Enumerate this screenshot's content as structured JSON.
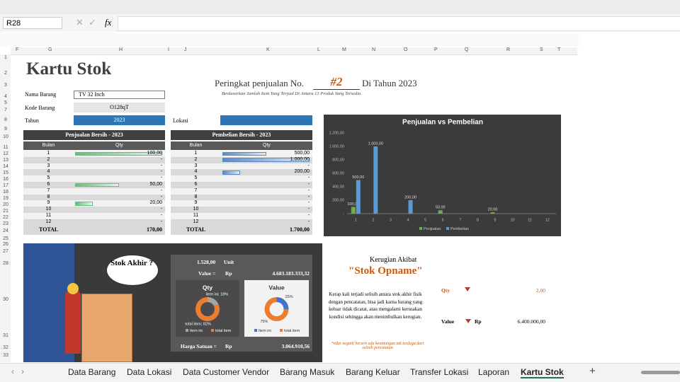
{
  "toolbar": {
    "cell_ref": "R28",
    "fx": "fx"
  },
  "columns": [
    "F",
    "G",
    "H",
    "I",
    "J",
    "K",
    "L",
    "M",
    "N",
    "O",
    "P",
    "Q",
    "R",
    "S",
    "T"
  ],
  "rows": [
    "1",
    "2",
    "3",
    "4",
    "5",
    "7",
    "8",
    "9",
    "10",
    "11",
    "12",
    "13",
    "14",
    "15",
    "16",
    "17",
    "18",
    "19",
    "20",
    "21",
    "22",
    "23",
    "24",
    "25",
    "26",
    "27",
    "28",
    "30",
    "31",
    "32",
    "33"
  ],
  "title": "Kartu Stok",
  "fields": {
    "nama_barang_label": "Nama Barang",
    "nama_barang": "TV 32 Inch",
    "kode_barang_label": "Kode Barang",
    "kode_barang": "O128qT",
    "tahun_label": "Tahun",
    "tahun": "2023",
    "lokasi_label": "Lokasi"
  },
  "ranking": {
    "prefix": "Peringkat penjualan No.",
    "rank": "#2",
    "suffix": "Di Tahun 2023",
    "note": "Berdasarkan Jumlah Item Yang Terjual Di Antara 13 Produk Yang Tersedia"
  },
  "sales_table": {
    "title": "Penjualan Bersih - 2023",
    "headers": [
      "Bulan",
      "Qty"
    ],
    "months": [
      1,
      2,
      3,
      4,
      5,
      6,
      7,
      8,
      9,
      10,
      11,
      12
    ],
    "values": [
      100,
      null,
      null,
      null,
      null,
      50,
      null,
      null,
      20,
      null,
      null,
      null
    ],
    "value_labels": [
      "100,00",
      "-",
      "-",
      "-",
      "-",
      "50,00",
      "-",
      "-",
      "20,00",
      "-",
      "-",
      "-"
    ],
    "total_label": "TOTAL",
    "total": "170,00"
  },
  "purchase_table": {
    "title": "Pembelian Bersih - 2023",
    "headers": [
      "Bulan",
      "Qty"
    ],
    "months": [
      1,
      2,
      3,
      4,
      5,
      6,
      7,
      8,
      9,
      10,
      11,
      12
    ],
    "values": [
      500,
      1000,
      null,
      200,
      null,
      null,
      null,
      null,
      null,
      null,
      null,
      null
    ],
    "value_labels": [
      "500,00",
      "1.000,00",
      "-",
      "200,00",
      "-",
      "-",
      "-",
      "-",
      "-",
      "-",
      "-",
      "-"
    ],
    "total_label": "TOTAL",
    "total": "1.700,00"
  },
  "chart_data": [
    {
      "type": "bar",
      "title": "Penjualan vs Pembelian",
      "categories": [
        1,
        2,
        3,
        4,
        5,
        6,
        7,
        8,
        9,
        10,
        11,
        12
      ],
      "series": [
        {
          "name": "Penjualan",
          "color": "#70ad47",
          "values": [
            100,
            null,
            null,
            null,
            null,
            50,
            null,
            null,
            20,
            null,
            null,
            null
          ],
          "value_labels": [
            "100,00",
            null,
            null,
            null,
            null,
            "50,00",
            null,
            null,
            "20,00",
            null,
            null,
            null
          ]
        },
        {
          "name": "Pembelian",
          "color": "#5b9bd5",
          "values": [
            500,
            1000,
            null,
            200,
            null,
            null,
            null,
            null,
            null,
            null,
            null,
            null
          ],
          "value_labels": [
            "500,00",
            "1.000,00",
            null,
            "200,00",
            null,
            null,
            null,
            null,
            null,
            null,
            null,
            null
          ]
        }
      ],
      "ylim": [
        0,
        1200
      ],
      "yticks": [
        {
          "value": 0,
          "label": "-"
        },
        {
          "value": 200,
          "label": "200,00"
        },
        {
          "value": 400,
          "label": "400,00"
        },
        {
          "value": 600,
          "label": "600,00"
        },
        {
          "value": 800,
          "label": "800,00"
        },
        {
          "value": 1000,
          "label": "1.000,00"
        },
        {
          "value": 1200,
          "label": "1.200,00"
        }
      ],
      "legend": "bottom"
    },
    {
      "type": "pie",
      "title": "Qty",
      "categories": [
        "Item ini",
        "total item"
      ],
      "colors": [
        "#a5a5a5",
        "#ed7d31"
      ],
      "values": [
        18,
        82
      ],
      "value_labels": [
        "item ini; 18%",
        "total item; 82%"
      ]
    },
    {
      "type": "pie",
      "title": "Value",
      "categories": [
        "Item ini",
        "total item"
      ],
      "colors": [
        "#4472c4",
        "#ed7d31"
      ],
      "values": [
        25,
        75
      ],
      "value_labels": [
        "25%",
        "75%"
      ]
    }
  ],
  "illustration": {
    "bubble": "Stok Akhir ?"
  },
  "stock": {
    "qty": "1.528,00",
    "unit": "Unit",
    "value_label": "Value =",
    "currency": "Rp",
    "value": "4.683.183.333,32",
    "price_label": "Harga Satuan =",
    "price": "3.064.910,56"
  },
  "loss": {
    "heading": "Kerugian Akibat",
    "title": "\"Stok Opname\"",
    "body": "Kerap kali terjadi selisih antara stok akhir fisik dengan pencatatan, bisa jadi karna barang yang keluar tidak dicatat, atau mengalami kerusakan kondisi sehingga akan menimbulkan kerugian.",
    "footnote": "*nilai negatif berarti ada keuntungan tak terduga dari selisih pencatatan",
    "qty_label": "Qty",
    "qty": "2,00",
    "value_label": "Value",
    "currency": "Rp",
    "value": "6.400.000,00"
  },
  "tabs": [
    "Data Barang",
    "Data Lokasi",
    "Data Customer Vendor",
    "Barang Masuk",
    "Barang Keluar",
    "Transfer Lokasi",
    "Laporan",
    "Kartu Stok"
  ],
  "active_tab": "Kartu Stok"
}
